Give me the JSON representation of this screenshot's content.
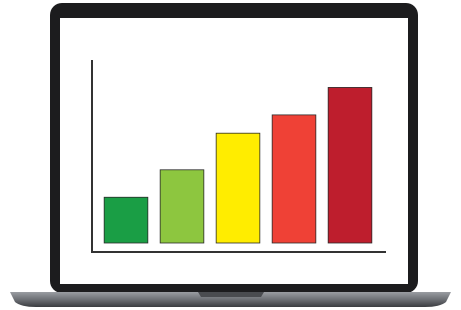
{
  "chart_data": {
    "type": "bar",
    "categories": [
      null,
      null,
      null,
      null,
      null
    ],
    "values": [
      25,
      40,
      60,
      70,
      85
    ],
    "colors": [
      "#1a9e45",
      "#8dc63f",
      "#ffed00",
      "#ef4136",
      "#be1e2d"
    ],
    "ylim": [
      0,
      100
    ]
  }
}
